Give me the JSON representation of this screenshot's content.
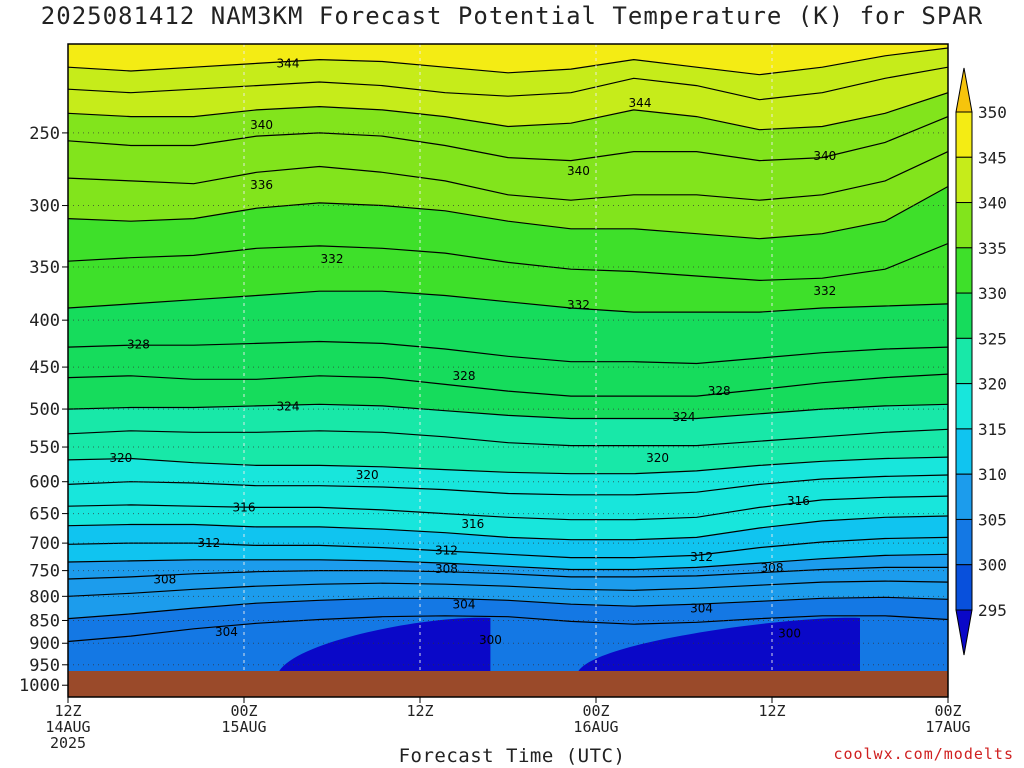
{
  "chart_data": {
    "type": "heatmap",
    "title": "2025081412 NAM3KM Forecast Potential Temperature (K) for SPAR",
    "xlabel": "Forecast Time (UTC)",
    "ylabel": "",
    "credit": "coolwx.com/modelts",
    "y_scale": "log-pressure",
    "y_range_hpa": [
      200,
      1030
    ],
    "y_ticks": [
      "250",
      "300",
      "350",
      "400",
      "450",
      "500",
      "550",
      "600",
      "650",
      "700",
      "750",
      "800",
      "850",
      "900",
      "950",
      "1000"
    ],
    "x_ticks": [
      {
        "l1": "12Z",
        "l2": "14AUG",
        "l3": "2025"
      },
      {
        "l1": "00Z",
        "l2": "15AUG",
        "l3": ""
      },
      {
        "l1": "12Z",
        "l2": "",
        "l3": ""
      },
      {
        "l1": "00Z",
        "l2": "16AUG",
        "l3": ""
      },
      {
        "l1": "12Z",
        "l2": "",
        "l3": ""
      },
      {
        "l1": "00Z",
        "l2": "17AUG",
        "l3": ""
      }
    ],
    "colorbar": {
      "levels": [
        295,
        300,
        305,
        310,
        315,
        320,
        325,
        330,
        335,
        340,
        345,
        350
      ],
      "colors": [
        "#0a08c8",
        "#0850dc",
        "#1478e4",
        "#1c9cec",
        "#10c4f0",
        "#18e6dc",
        "#18e8a8",
        "#16dc5c",
        "#3ee02a",
        "#82e41c",
        "#c6ec1a",
        "#f4ec14",
        "#f6c40c"
      ],
      "labels": [
        "295",
        "300",
        "305",
        "310",
        "315",
        "320",
        "325",
        "330",
        "335",
        "340",
        "345",
        "350"
      ]
    },
    "contour_labels": [
      {
        "v": "344",
        "t": 0.25,
        "p": 210
      },
      {
        "v": "344",
        "t": 0.65,
        "p": 232
      },
      {
        "v": "340",
        "t": 0.22,
        "p": 245
      },
      {
        "v": "340",
        "t": 0.58,
        "p": 275
      },
      {
        "v": "340",
        "t": 0.86,
        "p": 265
      },
      {
        "v": "336",
        "t": 0.22,
        "p": 285
      },
      {
        "v": "332",
        "t": 0.3,
        "p": 343
      },
      {
        "v": "332",
        "t": 0.58,
        "p": 385
      },
      {
        "v": "332",
        "t": 0.86,
        "p": 372
      },
      {
        "v": "328",
        "t": 0.08,
        "p": 425
      },
      {
        "v": "328",
        "t": 0.45,
        "p": 460
      },
      {
        "v": "328",
        "t": 0.74,
        "p": 478
      },
      {
        "v": "324",
        "t": 0.25,
        "p": 497
      },
      {
        "v": "324",
        "t": 0.7,
        "p": 510
      },
      {
        "v": "320",
        "t": 0.06,
        "p": 565
      },
      {
        "v": "320",
        "t": 0.34,
        "p": 590
      },
      {
        "v": "320",
        "t": 0.67,
        "p": 565
      },
      {
        "v": "316",
        "t": 0.2,
        "p": 640
      },
      {
        "v": "316",
        "t": 0.46,
        "p": 667
      },
      {
        "v": "316",
        "t": 0.83,
        "p": 630
      },
      {
        "v": "312",
        "t": 0.16,
        "p": 700
      },
      {
        "v": "312",
        "t": 0.43,
        "p": 713
      },
      {
        "v": "312",
        "t": 0.72,
        "p": 725
      },
      {
        "v": "308",
        "t": 0.11,
        "p": 767
      },
      {
        "v": "308",
        "t": 0.43,
        "p": 747
      },
      {
        "v": "308",
        "t": 0.8,
        "p": 745
      },
      {
        "v": "304",
        "t": 0.18,
        "p": 875
      },
      {
        "v": "304",
        "t": 0.45,
        "p": 817
      },
      {
        "v": "304",
        "t": 0.72,
        "p": 825
      },
      {
        "v": "300",
        "t": 0.48,
        "p": 893
      },
      {
        "v": "300",
        "t": 0.82,
        "p": 878
      }
    ],
    "contours": [
      {
        "v": 344,
        "p": [
          212,
          214,
          212,
          210,
          208,
          209,
          212,
          215,
          213,
          208,
          212,
          216,
          212,
          206,
          202
        ]
      },
      {
        "v": 342,
        "p": [
          224,
          226,
          224,
          222,
          220,
          222,
          226,
          228,
          226,
          218,
          222,
          230,
          226,
          218,
          212
        ]
      },
      {
        "v": 340,
        "p": [
          238,
          240,
          240,
          236,
          234,
          236,
          240,
          246,
          244,
          236,
          240,
          248,
          246,
          238,
          226
        ]
      },
      {
        "v": 338,
        "p": [
          255,
          258,
          258,
          252,
          250,
          252,
          258,
          266,
          268,
          262,
          262,
          268,
          266,
          256,
          240
        ]
      },
      {
        "v": 336,
        "p": [
          280,
          282,
          284,
          276,
          272,
          276,
          282,
          292,
          296,
          292,
          292,
          296,
          292,
          282,
          262
        ]
      },
      {
        "v": 334,
        "p": [
          310,
          312,
          310,
          302,
          298,
          300,
          304,
          312,
          318,
          318,
          322,
          326,
          322,
          312,
          286
        ]
      },
      {
        "v": 332,
        "p": [
          345,
          342,
          340,
          334,
          332,
          334,
          338,
          346,
          352,
          354,
          358,
          362,
          360,
          352,
          330
        ]
      },
      {
        "v": 330,
        "p": [
          388,
          384,
          380,
          376,
          372,
          372,
          376,
          382,
          388,
          392,
          392,
          392,
          388,
          386,
          384
        ]
      },
      {
        "v": 328,
        "p": [
          428,
          426,
          426,
          424,
          422,
          424,
          430,
          438,
          444,
          444,
          446,
          440,
          434,
          430,
          428
        ]
      },
      {
        "v": 326,
        "p": [
          462,
          460,
          464,
          464,
          460,
          462,
          470,
          478,
          484,
          484,
          484,
          476,
          468,
          462,
          458
        ]
      },
      {
        "v": 324,
        "p": [
          500,
          498,
          498,
          496,
          494,
          496,
          502,
          508,
          512,
          512,
          512,
          506,
          500,
          496,
          494
        ]
      },
      {
        "v": 322,
        "p": [
          532,
          528,
          530,
          530,
          528,
          530,
          536,
          544,
          548,
          548,
          548,
          542,
          536,
          530,
          526
        ]
      },
      {
        "v": 320,
        "p": [
          568,
          566,
          572,
          576,
          576,
          578,
          582,
          586,
          588,
          588,
          584,
          576,
          570,
          566,
          564
        ]
      },
      {
        "v": 318,
        "p": [
          604,
          600,
          602,
          606,
          606,
          608,
          612,
          618,
          620,
          620,
          616,
          604,
          596,
          592,
          590
        ]
      },
      {
        "v": 316,
        "p": [
          638,
          636,
          638,
          640,
          640,
          644,
          650,
          656,
          660,
          660,
          656,
          640,
          628,
          624,
          622
        ]
      },
      {
        "v": 314,
        "p": [
          670,
          668,
          668,
          672,
          672,
          676,
          682,
          690,
          694,
          694,
          690,
          674,
          662,
          656,
          654
        ]
      },
      {
        "v": 312,
        "p": [
          702,
          700,
          700,
          704,
          704,
          708,
          714,
          720,
          726,
          726,
          722,
          708,
          698,
          692,
          690
        ]
      },
      {
        "v": 310,
        "p": [
          734,
          732,
          730,
          730,
          730,
          732,
          736,
          742,
          748,
          748,
          744,
          736,
          728,
          722,
          720
        ]
      },
      {
        "v": 308,
        "p": [
          766,
          762,
          756,
          752,
          750,
          750,
          752,
          756,
          762,
          762,
          760,
          754,
          748,
          744,
          744
        ]
      },
      {
        "v": 306,
        "p": [
          800,
          794,
          786,
          780,
          776,
          774,
          776,
          780,
          786,
          788,
          784,
          778,
          772,
          770,
          772
        ]
      },
      {
        "v": 304,
        "p": [
          846,
          836,
          824,
          814,
          808,
          804,
          804,
          808,
          816,
          820,
          816,
          810,
          804,
          802,
          806
        ]
      },
      {
        "v": 302,
        "p": [
          896,
          884,
          868,
          856,
          848,
          842,
          840,
          842,
          852,
          858,
          854,
          846,
          840,
          840,
          848
        ]
      }
    ]
  }
}
